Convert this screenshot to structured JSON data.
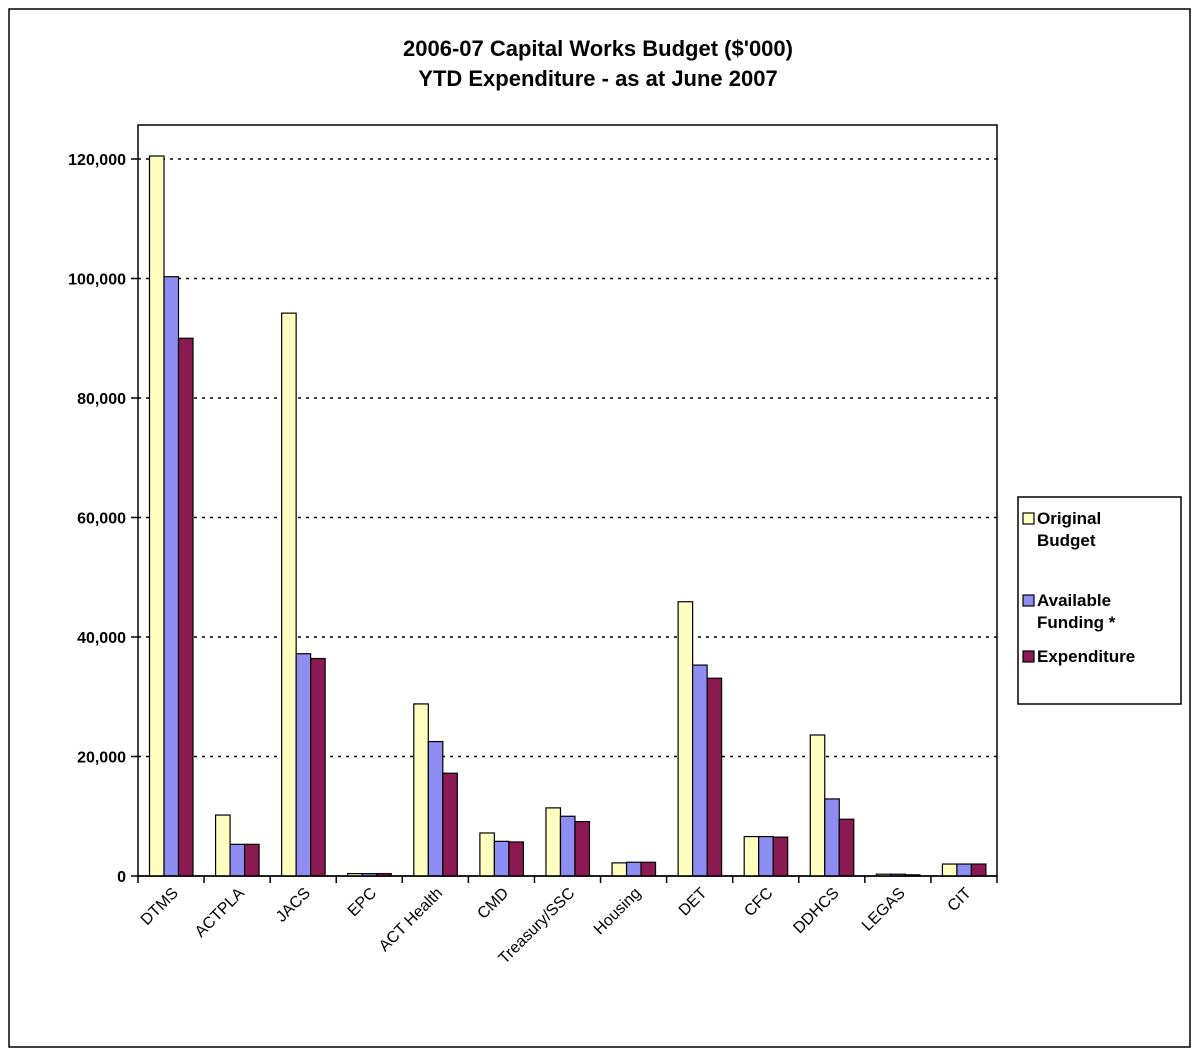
{
  "chart_data": {
    "type": "bar",
    "title": [
      "2006-07 Capital Works Budget ($'000)",
      "YTD Expenditure - as at June 2007"
    ],
    "xlabel": "",
    "ylabel": "",
    "ylim": [
      0,
      120000
    ],
    "yticks": [
      0,
      20000,
      40000,
      60000,
      80000,
      100000,
      120000
    ],
    "ytick_labels": [
      "0",
      "20,000",
      "40,000",
      "60,000",
      "80,000",
      "100,000",
      "120,000"
    ],
    "grid": "dotted horizontal",
    "legend_position": "right",
    "categories": [
      "DTMS",
      "ACTPLA",
      "JACS",
      "EPC",
      "ACT Health",
      "CMD",
      "Treasury/SSC",
      "Housing",
      "DET",
      "CFC",
      "DDHCS",
      "LEGAS",
      "CIT"
    ],
    "series": [
      {
        "name": "Original Budget",
        "legend_lines": [
          "Original",
          "Budget"
        ],
        "color": "#FFFFC0",
        "values": [
          120500,
          10200,
          94200,
          400,
          28800,
          7200,
          11400,
          2200,
          45900,
          6600,
          23600,
          300,
          2000
        ]
      },
      {
        "name": "Available Funding *",
        "legend_lines": [
          "Available",
          "Funding *"
        ],
        "color": "#8E8EF2",
        "values": [
          100300,
          5300,
          37200,
          400,
          22500,
          5800,
          10000,
          2300,
          35300,
          6600,
          12900,
          300,
          2000
        ]
      },
      {
        "name": "Expenditure",
        "legend_lines": [
          "Expenditure"
        ],
        "color": "#8B1A52",
        "values": [
          90000,
          5300,
          36400,
          400,
          17200,
          5700,
          9100,
          2300,
          33100,
          6500,
          9500,
          200,
          2000
        ]
      }
    ]
  }
}
